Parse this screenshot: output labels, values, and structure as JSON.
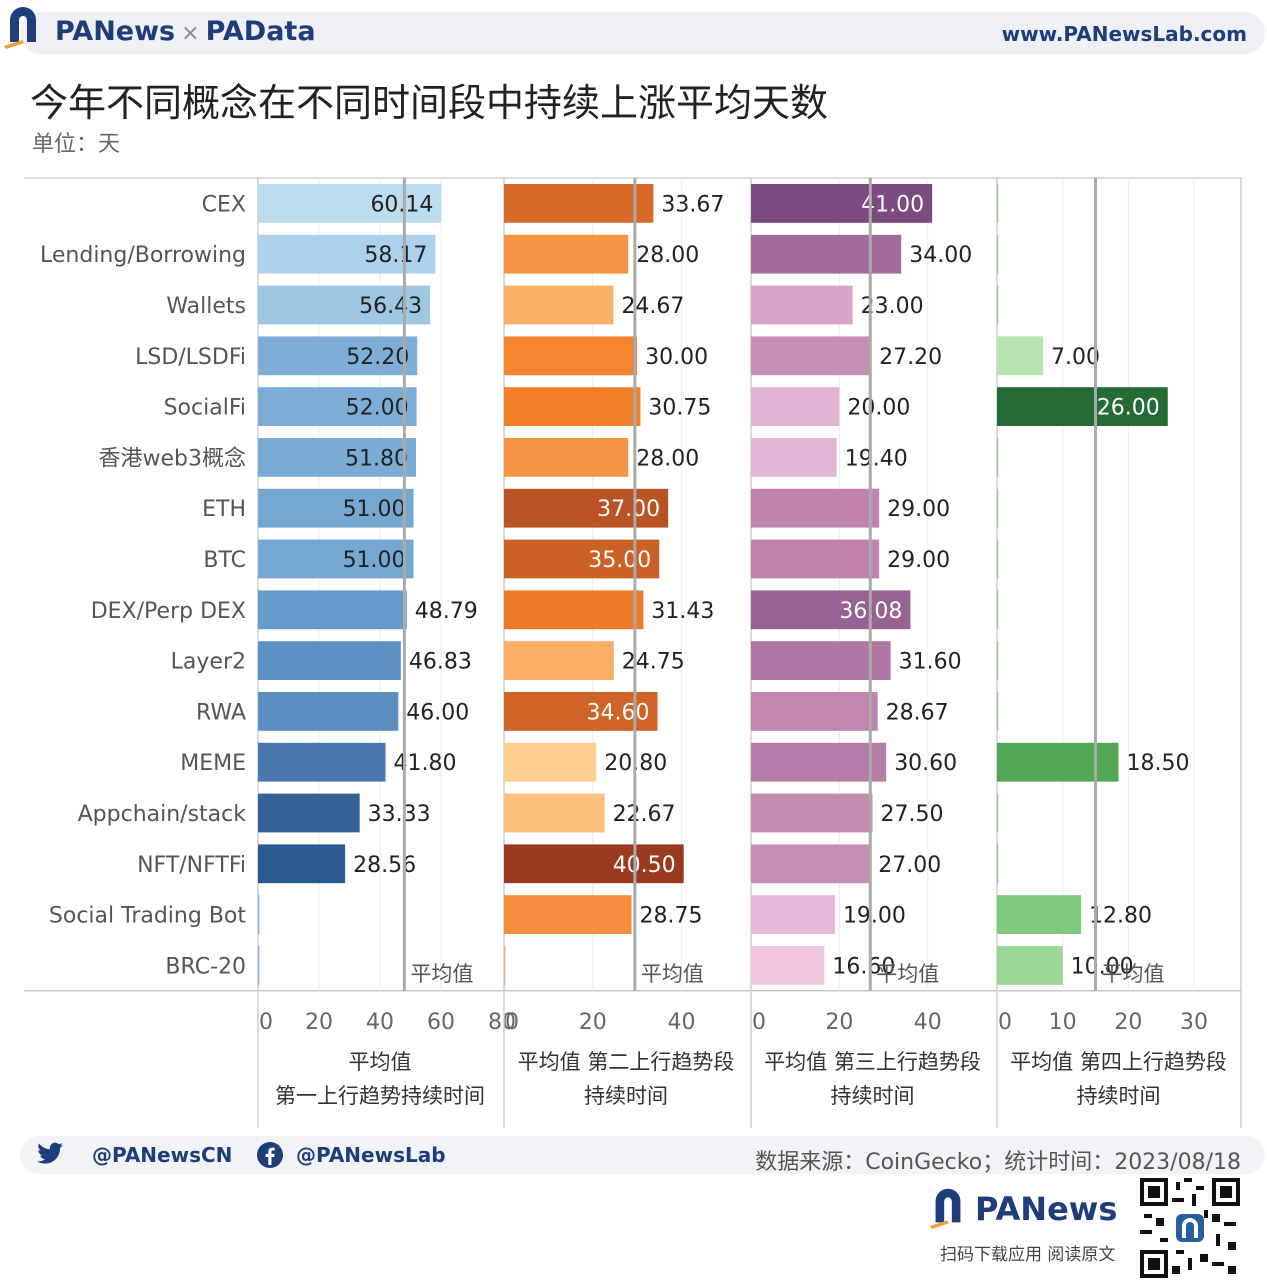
{
  "header": {
    "brand_left": "PANews",
    "brand_sep": "×",
    "brand_right": "PAData",
    "site": "www.PANewsLab.com"
  },
  "title": "今年不同概念在不同时间段中持续上涨平均天数",
  "unit": "单位：天",
  "footer": {
    "twitter": "@PANewsCN",
    "facebook": "@PANewsLab",
    "source": "数据来源：CoinGecko；统计时间：2023/08/18",
    "logo_text": "PANews",
    "download": "扫码下载应用  阅读原文"
  },
  "colors": {
    "blue_dark": "#2b5a8f",
    "orange_dark": "#c9521e",
    "purple_dark": "#7a4a80",
    "green_dark": "#256b35",
    "mean_line": "#aaaaaa"
  },
  "chart_data": {
    "type": "bar",
    "orientation": "horizontal",
    "categories": [
      "CEX",
      "Lending/Borrowing",
      "Wallets",
      "LSD/LSDFi",
      "SocialFi",
      "香港web3概念",
      "ETH",
      "BTC",
      "DEX/Perp DEX",
      "Layer2",
      "RWA",
      "MEME",
      "Appchain/stack",
      "NFT/NFTFi",
      "Social Trading Bot",
      "BRC-20"
    ],
    "mean_label": "平均值",
    "series": [
      {
        "name": "平均值\n第一上行趋势持续时间",
        "values": [
          60.14,
          58.17,
          56.43,
          52.2,
          52.0,
          51.8,
          51.0,
          51.0,
          48.79,
          46.83,
          46.0,
          41.8,
          33.33,
          28.56,
          null,
          null
        ],
        "labels": [
          "60.14",
          "58.17",
          "56.43",
          "52.20",
          "52.00",
          "51.80",
          "51.00",
          "51.00",
          "48.79",
          "46.83",
          "46.00",
          "41.80",
          "33.33",
          "28.56",
          "",
          ""
        ],
        "xlim": [
          0,
          80
        ],
        "ticks": [
          "0",
          "20",
          "40",
          "60",
          "80"
        ],
        "mean": 48,
        "palette": [
          "#2b5a8f",
          "#3d6aa3",
          "#6a9fcf",
          "#bcdcf0"
        ]
      },
      {
        "name": "平均值 第二上行趋势段\n持续时间",
        "values": [
          33.67,
          28.0,
          24.67,
          30.0,
          30.75,
          28.0,
          37.0,
          35.0,
          31.43,
          24.75,
          34.6,
          20.8,
          22.67,
          40.5,
          28.75,
          null
        ],
        "labels": [
          "33.67",
          "28.00",
          "24.67",
          "30.00",
          "30.75",
          "28.00",
          "37.00",
          "35.00",
          "31.43",
          "24.75",
          "34.60",
          "20.80",
          "22.67",
          "40.50",
          "28.75",
          ""
        ],
        "xlim": [
          0,
          55
        ],
        "ticks": [
          "0",
          "20",
          "40"
        ],
        "mean": 29.5,
        "palette": [
          "#ffcf8f",
          "#f47f2a",
          "#9a3a1f"
        ]
      },
      {
        "name": "平均值 第三上行趋势段\n持续时间",
        "values": [
          41.0,
          34.0,
          23.0,
          27.2,
          20.0,
          19.4,
          29.0,
          29.0,
          36.08,
          31.6,
          28.67,
          30.6,
          27.5,
          27.0,
          19.0,
          16.6
        ],
        "labels": [
          "41.00",
          "34.00",
          "23.00",
          "27.20",
          "20.00",
          "19.40",
          "29.00",
          "29.00",
          "36.08",
          "31.60",
          "28.67",
          "30.60",
          "27.50",
          "27.00",
          "19.00",
          "16.60"
        ],
        "xlim": [
          0,
          55
        ],
        "ticks": [
          "0",
          "20",
          "40"
        ],
        "mean": 27,
        "palette": [
          "#f0c6e0",
          "#c084ae",
          "#7a4a80"
        ]
      },
      {
        "name": "平均值 第四上行趋势段\n持续时间",
        "values": [
          null,
          null,
          null,
          7.0,
          26.0,
          null,
          null,
          null,
          null,
          null,
          null,
          18.5,
          null,
          null,
          12.8,
          10.0
        ],
        "labels": [
          "",
          "",
          "",
          "7.00",
          "26.00",
          "",
          "",
          "",
          "",
          "",
          "",
          "18.50",
          "",
          "",
          "12.80",
          "10.00"
        ],
        "xlim": [
          0,
          37
        ],
        "ticks": [
          "0",
          "10",
          "20",
          "30"
        ],
        "mean": 15,
        "palette": [
          "#b7e4b0",
          "#5cb85c",
          "#256b35"
        ]
      }
    ],
    "grid": true
  }
}
